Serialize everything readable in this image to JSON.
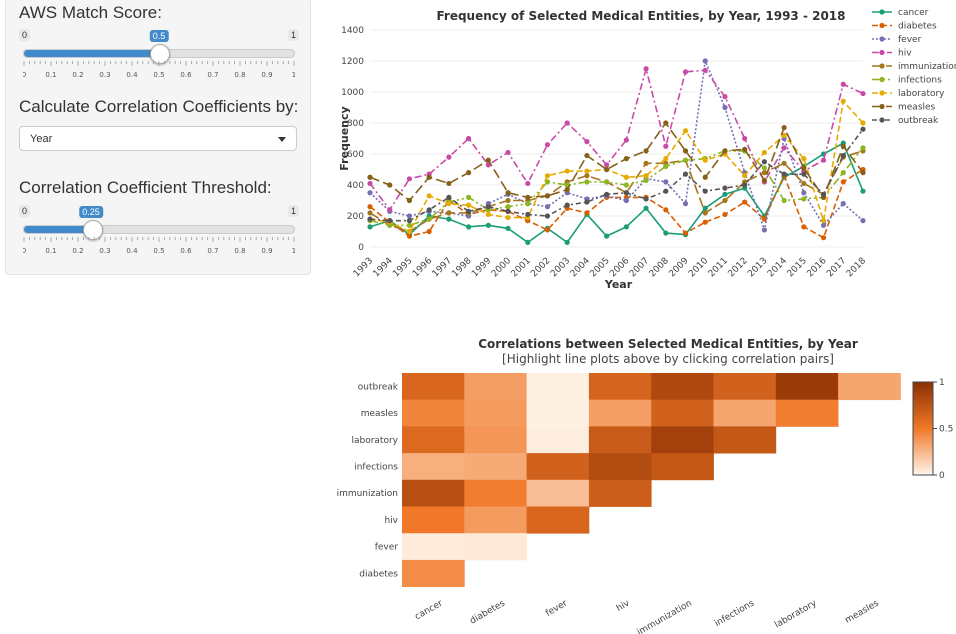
{
  "controls": {
    "match_score": {
      "label": "AWS Match Score:",
      "min": "0",
      "max": "1",
      "value": 0.5,
      "value_label": "0.5",
      "ticks": [
        "0",
        "0.1",
        "0.2",
        "0.3",
        "0.4",
        "0.5",
        "0.6",
        "0.7",
        "0.8",
        "0.9",
        "1"
      ]
    },
    "correlation_by": {
      "label": "Calculate Correlation Coefficients by:",
      "selected": "Year"
    },
    "threshold": {
      "label": "Correlation Coefficient Threshold:",
      "min": "0",
      "max": "1",
      "value": 0.25,
      "value_label": "0.25",
      "ticks": [
        "0",
        "0.1",
        "0.2",
        "0.3",
        "0.4",
        "0.5",
        "0.6",
        "0.7",
        "0.8",
        "0.9",
        "1"
      ]
    }
  },
  "colors": {
    "cancer": "#1b9e77",
    "diabetes": "#d95f02",
    "fever": "#7570b3",
    "hiv": "#c94aa6",
    "immunization": "#a6761d",
    "infections": "#8cb521",
    "laboratory": "#e6ab02",
    "measles": "#866119",
    "outbreak": "#555555"
  },
  "chart_data": [
    {
      "type": "line",
      "title": "Frequency of Selected Medical Entities, by Year, 1993 - 2018",
      "xlabel": "Year",
      "ylabel": "Frequency",
      "ylim": [
        0,
        1400
      ],
      "yticks": [
        0,
        200,
        400,
        600,
        800,
        1000,
        1200,
        1400
      ],
      "x": [
        "1993",
        "1994",
        "1995",
        "1996",
        "1997",
        "1998",
        "1999",
        "2000",
        "2001",
        "2002",
        "2003",
        "2004",
        "2005",
        "2006",
        "2007",
        "2008",
        "2009",
        "2010",
        "2011",
        "2012",
        "2013",
        "2014",
        "2015",
        "2016",
        "2017",
        "2018"
      ],
      "legend_position": "right",
      "series": [
        {
          "name": "cancer",
          "values": [
            130,
            170,
            80,
            200,
            180,
            130,
            140,
            120,
            30,
            120,
            30,
            210,
            70,
            130,
            250,
            90,
            80,
            250,
            340,
            380,
            200,
            450,
            520,
            600,
            670,
            360
          ]
        },
        {
          "name": "diabetes",
          "values": [
            260,
            160,
            70,
            100,
            300,
            210,
            240,
            230,
            170,
            110,
            250,
            220,
            320,
            320,
            320,
            240,
            90,
            160,
            210,
            290,
            180,
            460,
            130,
            60,
            420,
            500
          ]
        },
        {
          "name": "fever",
          "values": [
            350,
            230,
            200,
            230,
            220,
            200,
            280,
            340,
            280,
            260,
            350,
            310,
            330,
            300,
            440,
            420,
            280,
            1200,
            900,
            480,
            110,
            700,
            350,
            140,
            280,
            170
          ]
        },
        {
          "name": "hiv",
          "values": [
            410,
            240,
            440,
            470,
            580,
            700,
            530,
            610,
            410,
            660,
            800,
            680,
            530,
            690,
            1150,
            650,
            1130,
            1140,
            970,
            700,
            420,
            640,
            490,
            560,
            1050,
            990
          ]
        },
        {
          "name": "immunization",
          "values": [
            220,
            140,
            100,
            180,
            220,
            220,
            260,
            300,
            300,
            330,
            420,
            460,
            420,
            350,
            540,
            540,
            560,
            220,
            300,
            420,
            480,
            540,
            410,
            340,
            580,
            620
          ]
        },
        {
          "name": "infections",
          "values": [
            170,
            140,
            140,
            180,
            290,
            320,
            240,
            260,
            280,
            420,
            400,
            420,
            420,
            400,
            430,
            520,
            560,
            570,
            620,
            620,
            510,
            300,
            310,
            320,
            480,
            640
          ]
        },
        {
          "name": "laboratory",
          "values": [
            180,
            160,
            100,
            330,
            280,
            270,
            210,
            190,
            190,
            460,
            490,
            490,
            500,
            450,
            460,
            570,
            750,
            560,
            600,
            460,
            610,
            720,
            570,
            170,
            940,
            800
          ]
        },
        {
          "name": "measles",
          "values": [
            450,
            400,
            300,
            450,
            410,
            480,
            560,
            350,
            320,
            330,
            370,
            590,
            500,
            570,
            620,
            800,
            620,
            450,
            620,
            630,
            430,
            770,
            510,
            320,
            650,
            480
          ]
        },
        {
          "name": "outbreak",
          "values": [
            180,
            170,
            170,
            240,
            320,
            230,
            260,
            230,
            210,
            200,
            270,
            290,
            340,
            350,
            310,
            360,
            470,
            360,
            380,
            400,
            550,
            470,
            470,
            340,
            590,
            760
          ]
        }
      ]
    },
    {
      "type": "heatmap",
      "title": "Correlations between Selected Medical Entities, by Year",
      "subtitle": "[Highlight line plots above by clicking correlation pairs]",
      "x_categories": [
        "cancer",
        "diabetes",
        "fever",
        "hiv",
        "immunization",
        "infections",
        "laboratory",
        "measles"
      ],
      "y_categories": [
        "outbreak",
        "measles",
        "laboratory",
        "infections",
        "immunization",
        "hiv",
        "fever",
        "diabetes"
      ],
      "values": [
        [
          0.62,
          0.35,
          0.02,
          0.63,
          0.82,
          0.65,
          0.92,
          0.32
        ],
        [
          0.45,
          0.36,
          0.02,
          0.35,
          0.65,
          0.32,
          0.48,
          null
        ],
        [
          0.6,
          0.38,
          0.03,
          0.7,
          0.88,
          0.72,
          null,
          null
        ],
        [
          0.28,
          0.3,
          0.65,
          0.8,
          0.72,
          null,
          null,
          null
        ],
        [
          0.78,
          0.48,
          0.22,
          0.68,
          null,
          null,
          null,
          null
        ],
        [
          0.5,
          0.36,
          0.62,
          null,
          null,
          null,
          null,
          null
        ],
        [
          0.04,
          0.05,
          null,
          null,
          null,
          null,
          null,
          null
        ],
        [
          0.42,
          null,
          null,
          null,
          null,
          null,
          null,
          null
        ]
      ],
      "colorbar": {
        "min": 0,
        "max": 1,
        "ticks": [
          "0",
          "0.5",
          "1"
        ],
        "color_low": "#fff5eb",
        "color_high": "#8a2f02"
      }
    }
  ]
}
